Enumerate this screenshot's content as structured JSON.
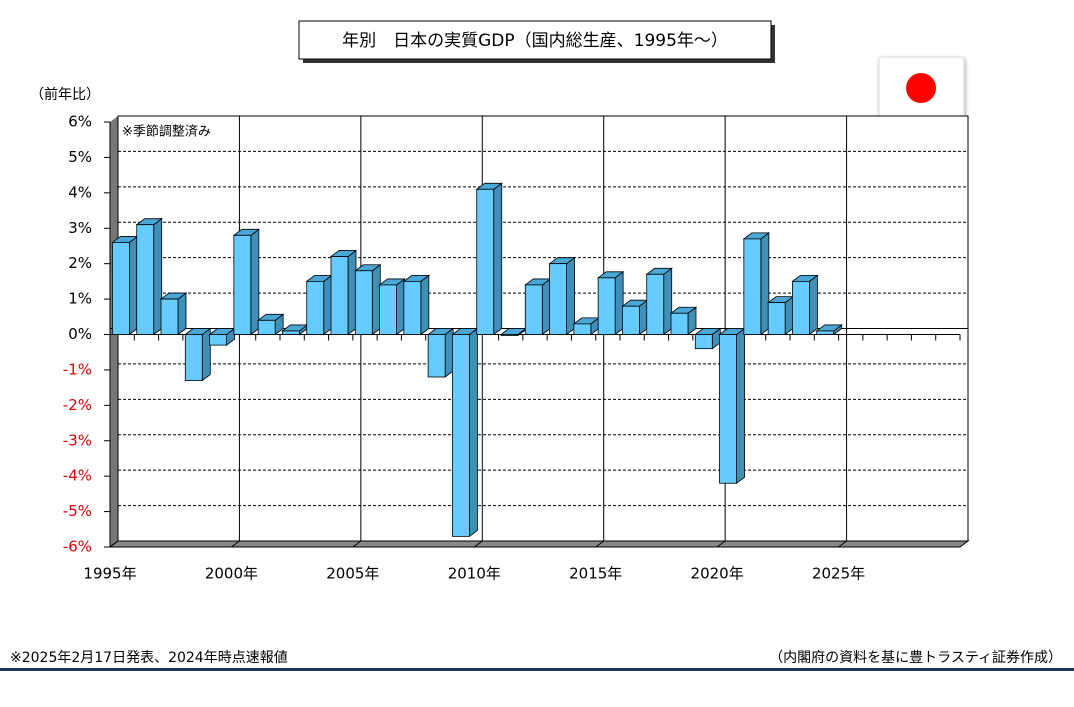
{
  "chart_data": {
    "type": "bar",
    "title": "年別　日本の実質GDP（国内総生産、1995年～）",
    "y_axis_label": "（前年比）",
    "annotation": "※季節調整済み",
    "footnote": "※2025年2月17日発表、2024年時点速報値",
    "source": "（内閣府の資料を基に豊トラスティ証券作成）",
    "x": [
      1995,
      1996,
      1997,
      1998,
      1999,
      2000,
      2001,
      2002,
      2003,
      2004,
      2005,
      2006,
      2007,
      2008,
      2009,
      2010,
      2011,
      2012,
      2013,
      2014,
      2015,
      2016,
      2017,
      2018,
      2019,
      2020,
      2021,
      2022,
      2023,
      2024
    ],
    "values": [
      2.6,
      3.1,
      1.0,
      -1.3,
      -0.3,
      2.8,
      0.4,
      0.1,
      1.5,
      2.2,
      1.8,
      1.4,
      1.5,
      -1.2,
      -5.7,
      4.1,
      0.0,
      1.4,
      2.0,
      0.3,
      1.6,
      0.8,
      1.7,
      0.6,
      -0.4,
      -4.2,
      2.7,
      0.9,
      1.5,
      0.1
    ],
    "color": "#66ccff",
    "xlim": [
      1995,
      2030
    ],
    "xticks": [
      {
        "value": 1995,
        "label": "1995年"
      },
      {
        "value": 2000,
        "label": "2000年"
      },
      {
        "value": 2005,
        "label": "2005年"
      },
      {
        "value": 2010,
        "label": "2010年"
      },
      {
        "value": 2015,
        "label": "2015年"
      },
      {
        "value": 2020,
        "label": "2020年"
      },
      {
        "value": 2025,
        "label": "2025年"
      }
    ],
    "ylim": [
      -6,
      6
    ],
    "yticks": [
      {
        "value": -6,
        "label": "-6%"
      },
      {
        "value": -5,
        "label": "-5%"
      },
      {
        "value": -4,
        "label": "-4%"
      },
      {
        "value": -3,
        "label": "-3%"
      },
      {
        "value": -2,
        "label": "-2%"
      },
      {
        "value": -1,
        "label": "-1%"
      },
      {
        "value": 0,
        "label": "0%"
      },
      {
        "value": 1,
        "label": "1%"
      },
      {
        "value": 2,
        "label": "2%"
      },
      {
        "value": 3,
        "label": "3%"
      },
      {
        "value": 4,
        "label": "4%"
      },
      {
        "value": 5,
        "label": "5%"
      },
      {
        "value": 6,
        "label": "6%"
      }
    ],
    "grid": true
  }
}
